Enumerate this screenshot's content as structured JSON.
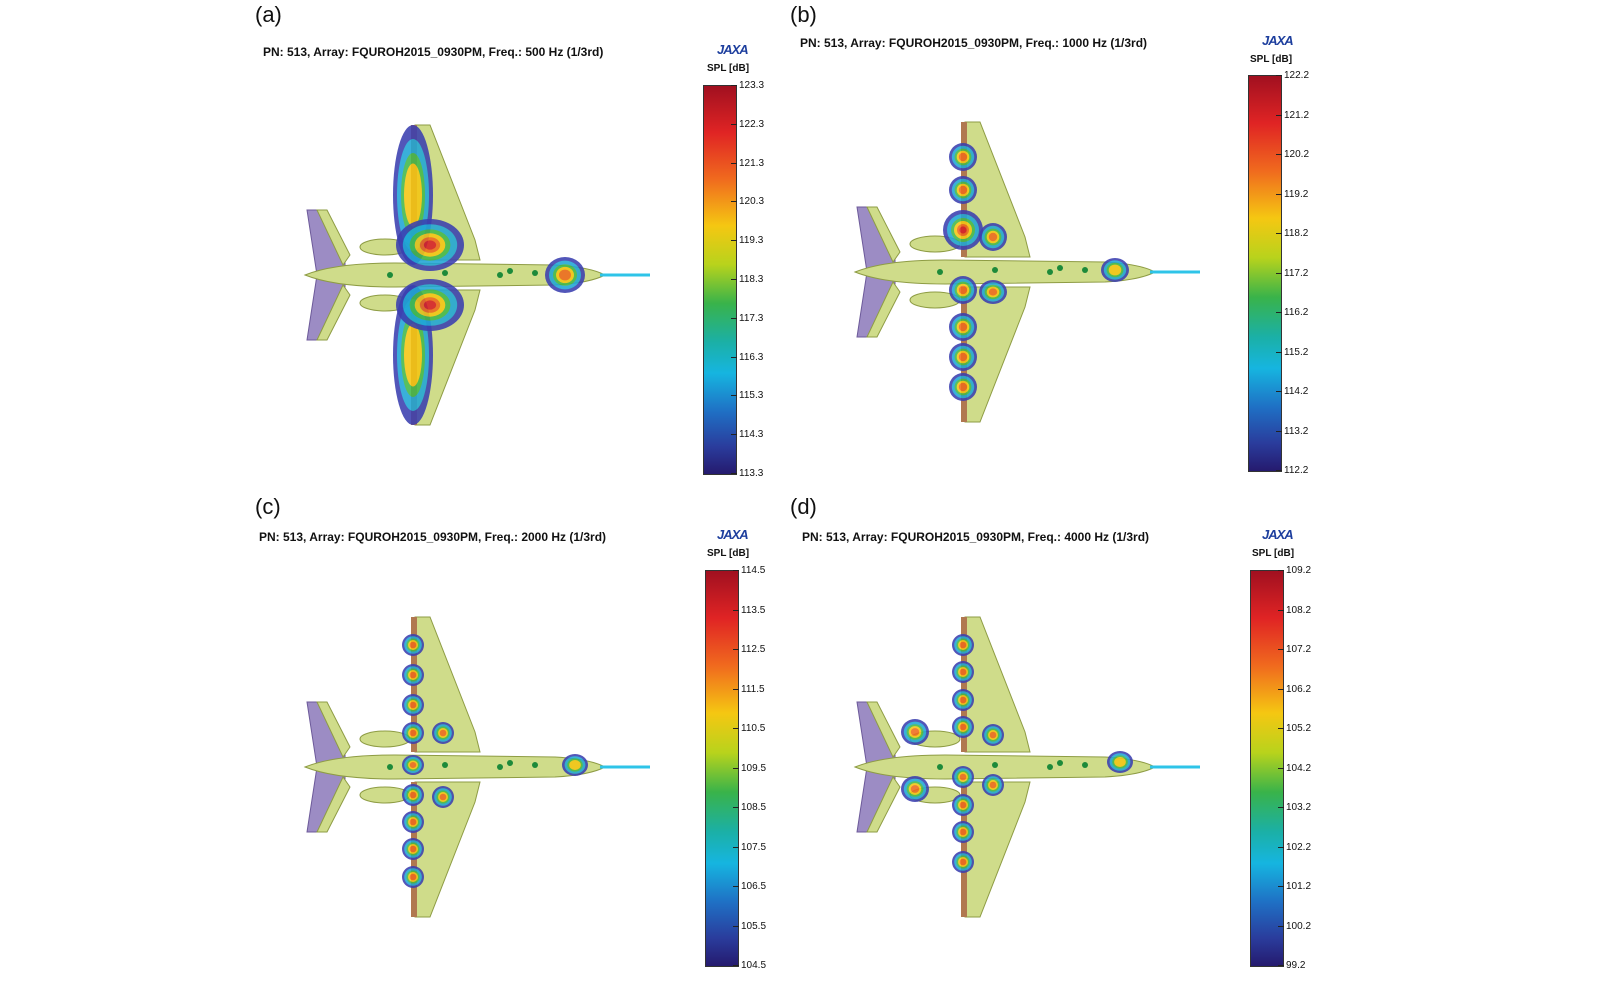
{
  "logo_text": "JAXA",
  "colorbar_unit": "SPL [dB]",
  "colors": {
    "airframe": "#cfdc8a",
    "airframe_edge": "#8e9c44",
    "tail": "#9c8cc4",
    "probe": "#2ec4e8",
    "leading_edge": "#b07850"
  },
  "panels": [
    {
      "letter": "(a)",
      "title": "PN: 513, Array: FQUROH2015_0930PM, Freq.: 500 Hz (1/3rd)",
      "colorbar_ticks": [
        "123.3",
        "122.3",
        "121.3",
        "120.3",
        "119.3",
        "118.3",
        "117.3",
        "116.3",
        "115.3",
        "114.3",
        "113.3"
      ]
    },
    {
      "letter": "(b)",
      "title": "PN: 513, Array: FQUROH2015_0930PM, Freq.: 1000 Hz (1/3rd)",
      "colorbar_ticks": [
        "122.2",
        "121.2",
        "120.2",
        "119.2",
        "118.2",
        "117.2",
        "116.2",
        "115.2",
        "114.2",
        "113.2",
        "112.2"
      ]
    },
    {
      "letter": "(c)",
      "title": "PN: 513, Array: FQUROH2015_0930PM, Freq.: 2000 Hz (1/3rd)",
      "colorbar_ticks": [
        "114.5",
        "113.5",
        "112.5",
        "111.5",
        "110.5",
        "109.5",
        "108.5",
        "107.5",
        "106.5",
        "105.5",
        "104.5"
      ]
    },
    {
      "letter": "(d)",
      "title": "PN: 513, Array: FQUROH2015_0930PM, Freq.: 4000 Hz (1/3rd)",
      "colorbar_ticks": [
        "109.2",
        "108.2",
        "107.2",
        "106.2",
        "105.2",
        "104.2",
        "103.2",
        "102.2",
        "101.2",
        "100.2",
        "99.2"
      ]
    }
  ],
  "chart_data": [
    {
      "type": "heatmap",
      "title": "PN: 513, Array: FQUROH2015_0930PM, Freq.: 500 Hz (1/3rd)",
      "colorbar_label": "SPL [dB]",
      "range": [
        113.3,
        123.3
      ],
      "ticks": [
        123.3,
        122.3,
        121.3,
        120.3,
        119.3,
        118.3,
        117.3,
        116.3,
        115.3,
        114.3,
        113.3
      ],
      "sources": [
        {
          "name": "upper flap",
          "level": 0.95,
          "rx": 34,
          "ry": 26
        },
        {
          "name": "lower flap",
          "level": 0.92,
          "rx": 34,
          "ry": 26
        },
        {
          "name": "upper wing inboard",
          "level": 0.6,
          "rx": 20,
          "ry": 70
        },
        {
          "name": "lower wing inboard",
          "level": 0.6,
          "rx": 20,
          "ry": 70
        },
        {
          "name": "nose gear",
          "level": 0.75,
          "rx": 20,
          "ry": 18
        }
      ]
    },
    {
      "type": "heatmap",
      "title": "PN: 513, Array: FQUROH2015_0930PM, Freq.: 1000 Hz (1/3rd)",
      "colorbar_label": "SPL [dB]",
      "range": [
        112.2,
        122.2
      ],
      "ticks": [
        122.2,
        121.2,
        120.2,
        119.2,
        118.2,
        117.2,
        116.2,
        115.2,
        114.2,
        113.2,
        112.2
      ],
      "sources": [
        {
          "name": "upper flap",
          "level": 0.95,
          "rx": 20,
          "ry": 20
        },
        {
          "name": "lower flap row",
          "level": 0.7,
          "rx": 14,
          "ry": 14
        },
        {
          "name": "nose gear",
          "level": 0.6,
          "rx": 14,
          "ry": 12
        }
      ]
    },
    {
      "type": "heatmap",
      "title": "PN: 513, Array: FQUROH2015_0930PM, Freq.: 2000 Hz (1/3rd)",
      "colorbar_label": "SPL [dB]",
      "range": [
        104.5,
        114.5
      ],
      "ticks": [
        114.5,
        113.5,
        112.5,
        111.5,
        110.5,
        109.5,
        108.5,
        107.5,
        106.5,
        105.5,
        104.5
      ],
      "sources": [
        {
          "name": "flap side edges",
          "level": 0.7,
          "rx": 11,
          "ry": 11
        },
        {
          "name": "nose gear",
          "level": 0.6,
          "rx": 13,
          "ry": 11
        }
      ]
    },
    {
      "type": "heatmap",
      "title": "PN: 513, Array: FQUROH2015_0930PM, Freq.: 4000 Hz (1/3rd)",
      "colorbar_label": "SPL [dB]",
      "range": [
        99.2,
        109.2
      ],
      "ticks": [
        109.2,
        108.2,
        107.2,
        106.2,
        105.2,
        104.2,
        103.2,
        102.2,
        101.2,
        100.2,
        99.2
      ],
      "sources": [
        {
          "name": "flap side edges",
          "level": 0.7,
          "rx": 11,
          "ry": 11
        },
        {
          "name": "engine nacelles",
          "level": 0.7,
          "rx": 14,
          "ry": 13
        },
        {
          "name": "nose gear",
          "level": 0.6,
          "rx": 13,
          "ry": 11
        }
      ]
    }
  ]
}
